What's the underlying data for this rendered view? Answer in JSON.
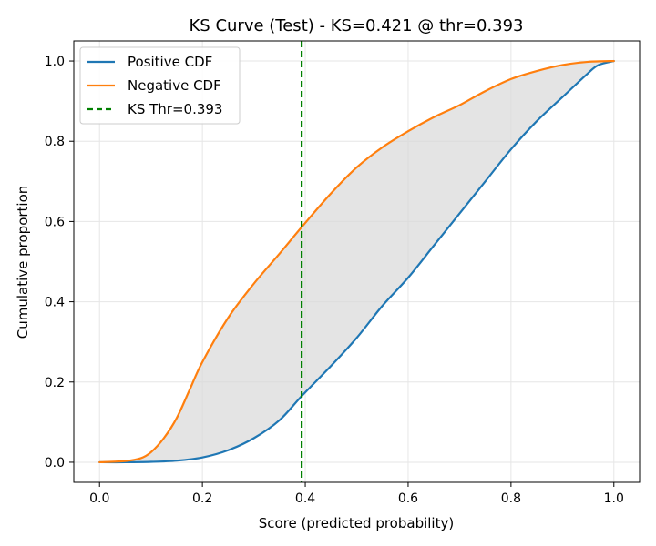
{
  "chart_data": {
    "type": "line",
    "title": "KS Curve (Test) - KS=0.421 @ thr=0.393",
    "xlabel": "Score (predicted probability)",
    "ylabel": "Cumulative proportion",
    "xlim": [
      -0.05,
      1.05
    ],
    "ylim": [
      -0.05,
      1.05
    ],
    "xticks": [
      "0.0",
      "0.2",
      "0.4",
      "0.6",
      "0.8",
      "1.0"
    ],
    "yticks": [
      "0.0",
      "0.2",
      "0.4",
      "0.6",
      "0.8",
      "1.0"
    ],
    "grid": true,
    "legend_position": "upper-left",
    "fill_between": {
      "color": "#d9d9d9"
    },
    "series": [
      {
        "name": "Positive CDF",
        "color": "#1f77b4",
        "x": [
          0.0,
          0.05,
          0.1,
          0.15,
          0.2,
          0.25,
          0.3,
          0.35,
          0.393,
          0.45,
          0.5,
          0.55,
          0.6,
          0.65,
          0.7,
          0.75,
          0.8,
          0.85,
          0.9,
          0.95,
          0.97,
          1.0
        ],
        "y": [
          0.0,
          0.0,
          0.001,
          0.004,
          0.012,
          0.03,
          0.06,
          0.105,
          0.165,
          0.24,
          0.31,
          0.39,
          0.46,
          0.54,
          0.62,
          0.7,
          0.78,
          0.85,
          0.91,
          0.97,
          0.99,
          1.0
        ]
      },
      {
        "name": "Negative CDF",
        "color": "#ff7f0e",
        "x": [
          0.0,
          0.05,
          0.08,
          0.1,
          0.125,
          0.15,
          0.175,
          0.2,
          0.25,
          0.3,
          0.35,
          0.393,
          0.45,
          0.5,
          0.55,
          0.6,
          0.65,
          0.7,
          0.75,
          0.8,
          0.85,
          0.9,
          0.95,
          1.0
        ],
        "y": [
          0.0,
          0.003,
          0.01,
          0.025,
          0.06,
          0.11,
          0.18,
          0.25,
          0.36,
          0.445,
          0.52,
          0.586,
          0.67,
          0.735,
          0.785,
          0.825,
          0.86,
          0.89,
          0.925,
          0.955,
          0.975,
          0.99,
          0.998,
          1.0
        ]
      }
    ],
    "vline": {
      "name": "KS Thr=0.393",
      "x": 0.393,
      "color": "#008000",
      "style": "dashed"
    }
  }
}
